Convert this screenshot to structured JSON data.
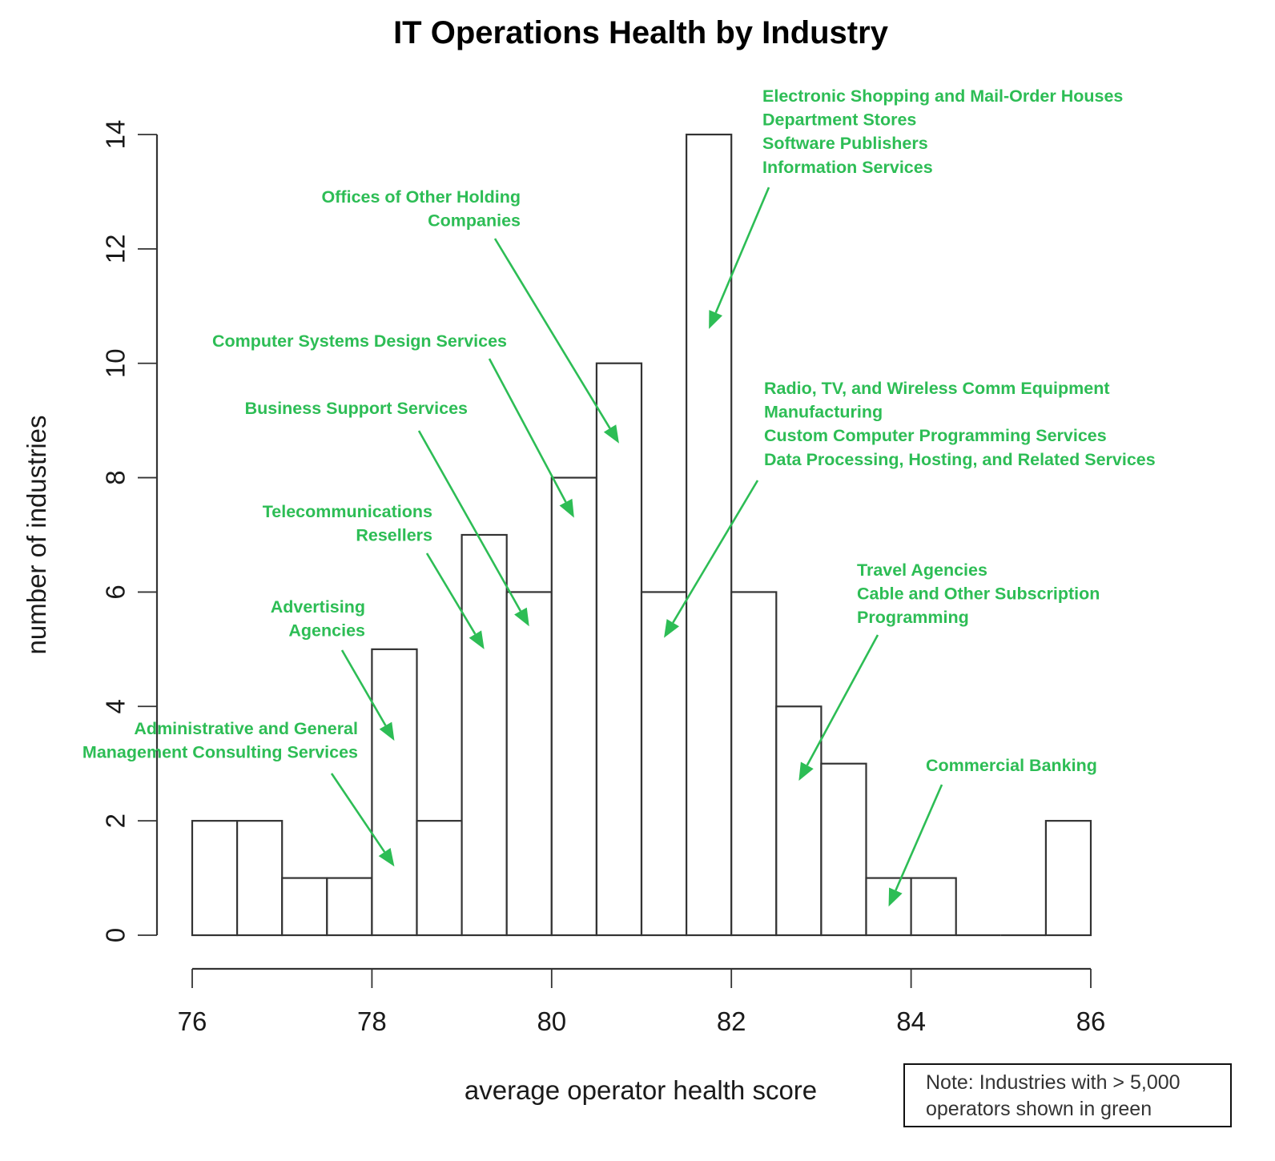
{
  "chart_data": {
    "type": "bar",
    "subtype": "histogram",
    "title": "IT Operations Health by Industry",
    "xlabel": "average operator health score",
    "ylabel": "number of industries",
    "xlim": [
      76,
      86
    ],
    "ylim": [
      0,
      14
    ],
    "grid": false,
    "bin_width": 0.5,
    "bins": [
      {
        "x0": 76.0,
        "x1": 76.5,
        "count": 2
      },
      {
        "x0": 76.5,
        "x1": 77.0,
        "count": 2
      },
      {
        "x0": 77.0,
        "x1": 77.5,
        "count": 1
      },
      {
        "x0": 77.5,
        "x1": 78.0,
        "count": 1
      },
      {
        "x0": 78.0,
        "x1": 78.5,
        "count": 5
      },
      {
        "x0": 78.5,
        "x1": 79.0,
        "count": 2
      },
      {
        "x0": 79.0,
        "x1": 79.5,
        "count": 7
      },
      {
        "x0": 79.5,
        "x1": 80.0,
        "count": 6
      },
      {
        "x0": 80.0,
        "x1": 80.5,
        "count": 8
      },
      {
        "x0": 80.5,
        "x1": 81.0,
        "count": 10
      },
      {
        "x0": 81.0,
        "x1": 81.5,
        "count": 6
      },
      {
        "x0": 81.5,
        "x1": 82.0,
        "count": 14
      },
      {
        "x0": 82.0,
        "x1": 82.5,
        "count": 6
      },
      {
        "x0": 82.5,
        "x1": 83.0,
        "count": 4
      },
      {
        "x0": 83.0,
        "x1": 83.5,
        "count": 3
      },
      {
        "x0": 83.5,
        "x1": 84.0,
        "count": 1
      },
      {
        "x0": 84.0,
        "x1": 84.5,
        "count": 1
      },
      {
        "x0": 84.5,
        "x1": 85.0,
        "count": 0
      },
      {
        "x0": 85.0,
        "x1": 85.5,
        "count": 0
      },
      {
        "x0": 85.5,
        "x1": 86.0,
        "count": 2
      }
    ],
    "x_ticks": [
      76,
      78,
      80,
      82,
      84,
      86
    ],
    "y_ticks": [
      0,
      2,
      4,
      6,
      8,
      10,
      12,
      14
    ],
    "annotation_color": "#2dbd55",
    "annotations": [
      {
        "lines": [
          "Electronic Shopping and Mail-Order Houses",
          "Department Stores",
          "Software Publishers",
          "Information Services"
        ],
        "align": "start",
        "target": {
          "x": 81.75,
          "y": 10.6
        }
      },
      {
        "lines": [
          "Offices of Other Holding",
          "Companies"
        ],
        "align": "end",
        "target": {
          "x": 80.75,
          "y": 8.6
        }
      },
      {
        "lines": [
          "Computer Systems Design Services"
        ],
        "align": "end",
        "target": {
          "x": 80.25,
          "y": 7.3
        }
      },
      {
        "lines": [
          "Business Support Services"
        ],
        "align": "end",
        "target": {
          "x": 79.75,
          "y": 5.4
        }
      },
      {
        "lines": [
          "Radio, TV, and Wireless Comm Equipment",
          "Manufacturing",
          "Custom Computer Programming Services",
          "Data Processing, Hosting, and Related Services"
        ],
        "align": "start",
        "target": {
          "x": 81.25,
          "y": 5.2
        }
      },
      {
        "lines": [
          "Telecommunications",
          "Resellers"
        ],
        "align": "end",
        "target": {
          "x": 79.25,
          "y": 5.0
        }
      },
      {
        "lines": [
          "Advertising",
          "Agencies"
        ],
        "align": "end",
        "target": {
          "x": 78.25,
          "y": 3.4
        }
      },
      {
        "lines": [
          "Travel Agencies",
          "Cable and Other Subscription",
          "Programming"
        ],
        "align": "start",
        "target": {
          "x": 82.75,
          "y": 2.7
        }
      },
      {
        "lines": [
          "Administrative and General",
          "Management Consulting Services"
        ],
        "align": "end",
        "target": {
          "x": 78.25,
          "y": 1.2
        }
      },
      {
        "lines": [
          "Commercial Banking"
        ],
        "align": "start",
        "target": {
          "x": 83.75,
          "y": 0.5
        }
      }
    ],
    "note": [
      "Note: Industries with > 5,000",
      "operators shown in green"
    ]
  }
}
